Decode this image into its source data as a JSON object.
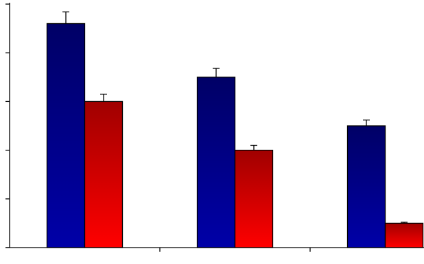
{
  "chart_data": {
    "type": "bar",
    "categories": [
      null,
      null,
      null
    ],
    "series": [
      {
        "color": "#0000a8",
        "gradient_top": "#000066",
        "values": [
          4.6,
          3.5,
          2.5
        ],
        "errors": [
          0.24,
          0.18,
          0.12
        ]
      },
      {
        "color": "#ff0000",
        "gradient_top": "#a00000",
        "values": [
          3.0,
          2.0,
          0.5
        ],
        "errors": [
          0.15,
          0.1,
          0.02
        ]
      }
    ],
    "ylim": [
      0,
      5
    ],
    "yticks": [
      0,
      1,
      2,
      3,
      4,
      5
    ],
    "grid": false
  }
}
